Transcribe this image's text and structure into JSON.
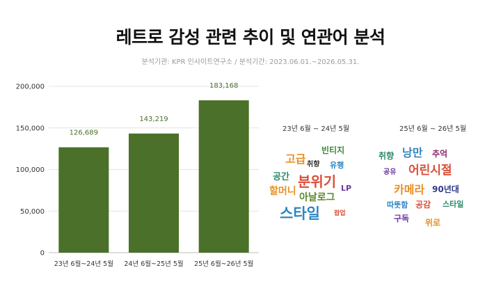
{
  "header": {
    "title": "레트로 감성 관련 추이 및 연관어 분석",
    "subtitle": "분석기관: KPR 인사이트연구소 / 분석기간: 2023.06.01.~2026.05.31."
  },
  "chart_data": {
    "type": "bar",
    "categories": [
      "23년 6월~24년 5월",
      "24년 6월~25년 5월",
      "25년 6월~26년 5월"
    ],
    "values": [
      126689,
      143219,
      183168
    ],
    "value_labels": [
      "126,689",
      "143,219",
      "183,168"
    ],
    "yticks": [
      "0",
      "50,000",
      "100,000",
      "150,000",
      "200,000"
    ],
    "ylim": [
      0,
      200000
    ],
    "grid": true,
    "colors": {
      "bar": "#4a7029",
      "label": "#4a7029"
    }
  },
  "clouds": [
    {
      "title": "23년 6월 ~ 24년 5월",
      "words": [
        {
          "text": "빈티지",
          "color": "#3a8a3a"
        },
        {
          "text": "고급",
          "color": "#e89024"
        },
        {
          "text": "취향",
          "color": "#333333"
        },
        {
          "text": "유행",
          "color": "#2e86c1"
        },
        {
          "text": "공간",
          "color": "#2a8a6a"
        },
        {
          "text": "분위기",
          "color": "#d94f3a"
        },
        {
          "text": "할머니",
          "color": "#e89024"
        },
        {
          "text": "LP",
          "color": "#6a3a9a"
        },
        {
          "text": "아날로그",
          "color": "#5a8a2a"
        },
        {
          "text": "스타일",
          "color": "#2e86c1"
        },
        {
          "text": "팝업",
          "color": "#d94f3a"
        }
      ]
    },
    {
      "title": "25년 6월 ~ 26년 5월",
      "words": [
        {
          "text": "취향",
          "color": "#2a8a6a"
        },
        {
          "text": "낭만",
          "color": "#2e86c1"
        },
        {
          "text": "추억",
          "color": "#8a2a6a"
        },
        {
          "text": "공유",
          "color": "#6a3a9a"
        },
        {
          "text": "어린시절",
          "color": "#d94f3a"
        },
        {
          "text": "카메라",
          "color": "#e89024"
        },
        {
          "text": "90년대",
          "color": "#333a8a"
        },
        {
          "text": "따뜻함",
          "color": "#2e86c1"
        },
        {
          "text": "공감",
          "color": "#d94f3a"
        },
        {
          "text": "스타일",
          "color": "#2a8a6a"
        },
        {
          "text": "구독",
          "color": "#6a3a9a"
        },
        {
          "text": "위로",
          "color": "#e89024"
        }
      ]
    }
  ]
}
